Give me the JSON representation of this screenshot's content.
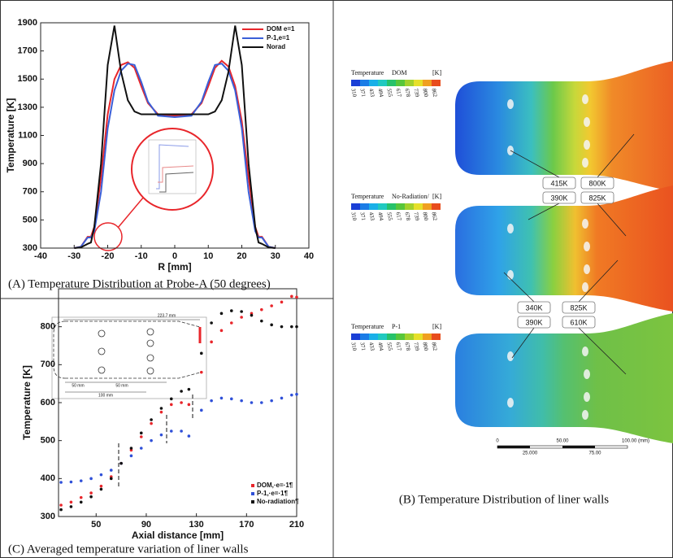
{
  "chart_data": [
    {
      "type": "line",
      "caption": "(A) Temperature Distribution at Probe-A (50 degrees)",
      "x_label": "R [mm]",
      "y_label": "Temperature [K]",
      "x": [
        -30,
        -28,
        -26,
        -25,
        -24,
        -22,
        -20,
        -18,
        -16,
        -14,
        -12,
        -10,
        -8,
        -5,
        0,
        5,
        8,
        10,
        12,
        14,
        16,
        18,
        20,
        22,
        24,
        25,
        26,
        28,
        30
      ],
      "series": [
        {
          "name": "DOM e=1",
          "color": "#e8262b",
          "values": [
            300,
            310,
            380,
            380,
            450,
            800,
            1250,
            1500,
            1600,
            1620,
            1580,
            1450,
            1330,
            1250,
            1240,
            1250,
            1330,
            1450,
            1580,
            1630,
            1590,
            1450,
            1200,
            800,
            450,
            380,
            380,
            310,
            300
          ]
        },
        {
          "name": "P-1,e=1",
          "color": "#3a5fd8",
          "values": [
            300,
            310,
            375,
            375,
            420,
            700,
            1150,
            1420,
            1560,
            1610,
            1600,
            1480,
            1340,
            1240,
            1230,
            1240,
            1340,
            1480,
            1600,
            1610,
            1560,
            1420,
            1150,
            700,
            420,
            375,
            375,
            310,
            300
          ]
        },
        {
          "name": "Norad",
          "color": "#111111",
          "values": [
            300,
            305,
            330,
            340,
            450,
            900,
            1600,
            1880,
            1550,
            1350,
            1270,
            1250,
            1250,
            1250,
            1250,
            1250,
            1250,
            1250,
            1270,
            1350,
            1550,
            1880,
            1600,
            900,
            450,
            340,
            330,
            305,
            300
          ]
        }
      ],
      "xlim": [
        -40,
        40
      ],
      "xticks": [
        -40,
        -30,
        -20,
        -10,
        0,
        10,
        20,
        30,
        40
      ],
      "ylim": [
        300,
        1900
      ],
      "yticks": [
        300,
        500,
        700,
        900,
        1100,
        1300,
        1500,
        1700,
        1900
      ],
      "legend": "upper right"
    },
    {
      "type": "scatter",
      "caption": "(C) Averaged temperature variation  of liner walls",
      "x_label": "Axial distance [mm]",
      "y_label": "Temperature [K]",
      "annotations": [
        "223.7 mm",
        "50 mm",
        "50 mm",
        "100 mm"
      ],
      "x": [
        22,
        30,
        38,
        46,
        54,
        62,
        70,
        78,
        86,
        94,
        102,
        110,
        118,
        124,
        134,
        142,
        150,
        158,
        166,
        174,
        182,
        190,
        198,
        206,
        210
      ],
      "series": [
        {
          "name": "DOM,·e=·1¶",
          "color": "#e8262b",
          "values": [
            330,
            338,
            350,
            362,
            380,
            405,
            440,
            475,
            510,
            545,
            575,
            595,
            600,
            595,
            680,
            760,
            790,
            810,
            825,
            835,
            845,
            855,
            865,
            880,
            878
          ]
        },
        {
          "name": "P-1,·e=·1¶",
          "color": "#2f50d8",
          "values": [
            390,
            391,
            394,
            400,
            410,
            422,
            440,
            460,
            480,
            500,
            515,
            525,
            525,
            512,
            580,
            605,
            612,
            610,
            605,
            600,
            600,
            605,
            612,
            620,
            622
          ]
        },
        {
          "name": "No-radiation¶",
          "color": "#111111",
          "values": [
            318,
            326,
            338,
            352,
            372,
            400,
            440,
            480,
            520,
            555,
            585,
            610,
            630,
            635,
            730,
            810,
            835,
            842,
            840,
            830,
            815,
            805,
            800,
            800,
            800
          ]
        }
      ],
      "xlim": [
        20,
        210
      ],
      "xticks": [
        50,
        90,
        130,
        170,
        210
      ],
      "ylim": [
        300,
        900
      ],
      "yticks": [
        300,
        400,
        500,
        600,
        700,
        800
      ],
      "legend": "lower right"
    }
  ],
  "panel_b": {
    "caption": "(B) Temperature Distribution of liner walls",
    "colorbar_title": "Temperature",
    "colorbar_unit": "[K]",
    "colorbar_ticks": [
      "310",
      "371",
      "433",
      "494",
      "555",
      "617",
      "678",
      "739",
      "800",
      "862"
    ],
    "liners": [
      {
        "label": "DOM"
      },
      {
        "label": "No-Radiation/"
      },
      {
        "label": "P-1"
      }
    ],
    "callouts": [
      "415K",
      "800K",
      "390K",
      "825K",
      "340K",
      "825K",
      "390K",
      "610K"
    ],
    "scale_bar": [
      "0",
      "50.00",
      "100.00 (mm)",
      "25.000",
      "75.00"
    ]
  }
}
